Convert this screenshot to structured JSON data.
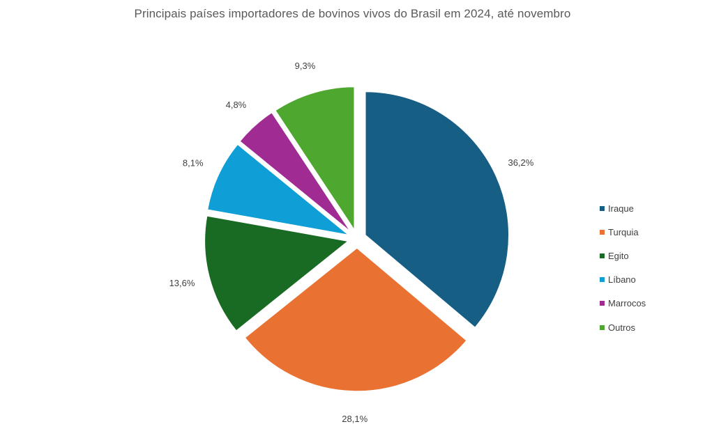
{
  "chart_data": {
    "type": "pie",
    "title": "Principais países importadores de bovinos vivos do Brasil em 2024, até novembro",
    "categories": [
      "Iraque",
      "Turquia",
      "Egito",
      "Líbano",
      "Marrocos",
      "Outros"
    ],
    "values": [
      36.2,
      28.1,
      13.6,
      8.1,
      4.8,
      9.3
    ],
    "data_labels": [
      "36,2%",
      "28,1%",
      "13,6%",
      "8,1%",
      "4,8%",
      "9,3%"
    ],
    "colors": [
      "#165e83",
      "#e97132",
      "#196b24",
      "#0f9ed5",
      "#a02b93",
      "#4ea72e"
    ],
    "legend_position": "right",
    "exploded": true,
    "start_angle_deg": 0,
    "direction": "clockwise"
  }
}
